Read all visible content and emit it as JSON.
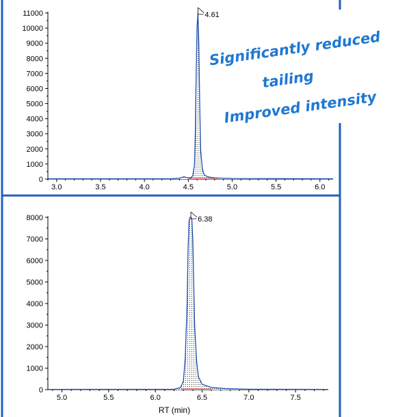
{
  "colors": {
    "frame": "#1f5fbf",
    "trace": "#1a4fb0",
    "fill_dots": "#333333",
    "baseline_red": "#d03030",
    "callout": "#1f78d1"
  },
  "annotation": {
    "lines": [
      "Significantly reduced",
      "tailing",
      "Improved intensity"
    ]
  },
  "chart_data": [
    {
      "type": "line",
      "title": "",
      "xlabel": "",
      "ylabel": "",
      "xlim": [
        2.9,
        6.15
      ],
      "ylim": [
        0,
        11000
      ],
      "xticks": [
        "3.0",
        "3.5",
        "4.0",
        "4.5",
        "5.0",
        "5.5",
        "6.0"
      ],
      "yticks": [
        "0",
        "1000",
        "2000",
        "3000",
        "4000",
        "5000",
        "6000",
        "7000",
        "8000",
        "9000",
        "10000",
        "11000"
      ],
      "peak_label": "4.61",
      "peak": {
        "x": 4.61,
        "y": 11000
      },
      "series": [
        {
          "x": [
            2.9,
            4.3,
            4.4,
            4.45,
            4.5,
            4.53,
            4.55,
            4.57,
            4.58,
            4.59,
            4.6,
            4.61,
            4.62,
            4.63,
            4.64,
            4.66,
            4.68,
            4.72,
            4.8,
            5.0,
            6.15
          ],
          "values": [
            20,
            20,
            60,
            150,
            80,
            100,
            200,
            900,
            3000,
            7000,
            10100,
            11000,
            9000,
            5000,
            2000,
            700,
            300,
            150,
            80,
            40,
            20
          ]
        }
      ]
    },
    {
      "type": "line",
      "title": "",
      "xlabel": "RT (min)",
      "ylabel": "",
      "xlim": [
        4.85,
        7.85
      ],
      "ylim": [
        0,
        8000
      ],
      "xticks": [
        "5.0",
        "5.5",
        "6.0",
        "6.5",
        "7.0",
        "7.5"
      ],
      "yticks": [
        "0",
        "1000",
        "2000",
        "3000",
        "4000",
        "5000",
        "6000",
        "7000",
        "8000"
      ],
      "peak_label": "6.38",
      "peak": {
        "x": 6.38,
        "y": 8000
      },
      "series": [
        {
          "x": [
            4.85,
            6.2,
            6.27,
            6.3,
            6.32,
            6.34,
            6.35,
            6.36,
            6.37,
            6.38,
            6.39,
            6.4,
            6.41,
            6.42,
            6.44,
            6.46,
            6.5,
            6.6,
            6.75,
            7.0,
            7.85
          ],
          "values": [
            10,
            20,
            100,
            400,
            1500,
            4000,
            6500,
            7800,
            8000,
            8000,
            7900,
            7000,
            5000,
            3000,
            1400,
            600,
            250,
            100,
            50,
            20,
            10
          ]
        }
      ]
    }
  ]
}
